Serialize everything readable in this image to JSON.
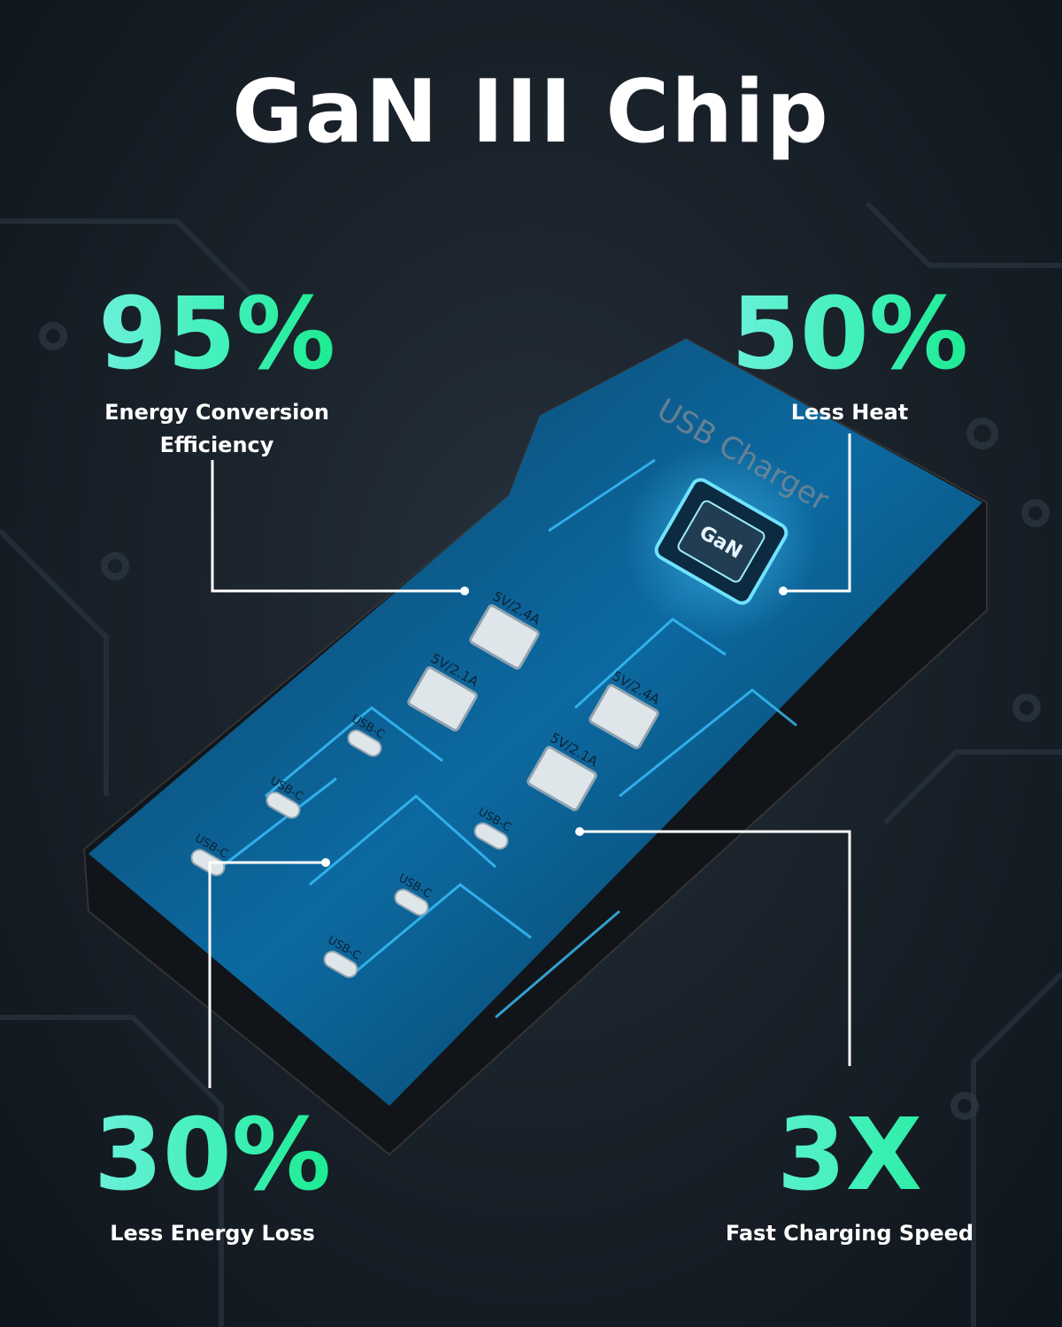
{
  "title": "GaN III Chip",
  "stats": [
    {
      "value": "95%",
      "label": "Energy Conversion Efficiency"
    },
    {
      "value": "50%",
      "label": "Less Heat"
    },
    {
      "value": "30%",
      "label": "Less Energy Loss"
    },
    {
      "value": "3X",
      "label": "Fast Charging Speed"
    }
  ],
  "device": {
    "brand_text": "USB Charger",
    "chip_label": "GaN",
    "usb_a_ports": [
      "5V/2.4A",
      "5V/2.1A",
      "5V/2.4A",
      "5V/2.1A"
    ],
    "usb_c_ports": [
      "USB-C",
      "USB-C",
      "USB-C",
      "USB-C",
      "USB-C",
      "USB-C"
    ]
  },
  "colors": {
    "accent_start": "#6ff0dd",
    "accent_end": "#18eb8c",
    "circuit_blue": "#1e9ee6",
    "background": "#1a222b"
  }
}
